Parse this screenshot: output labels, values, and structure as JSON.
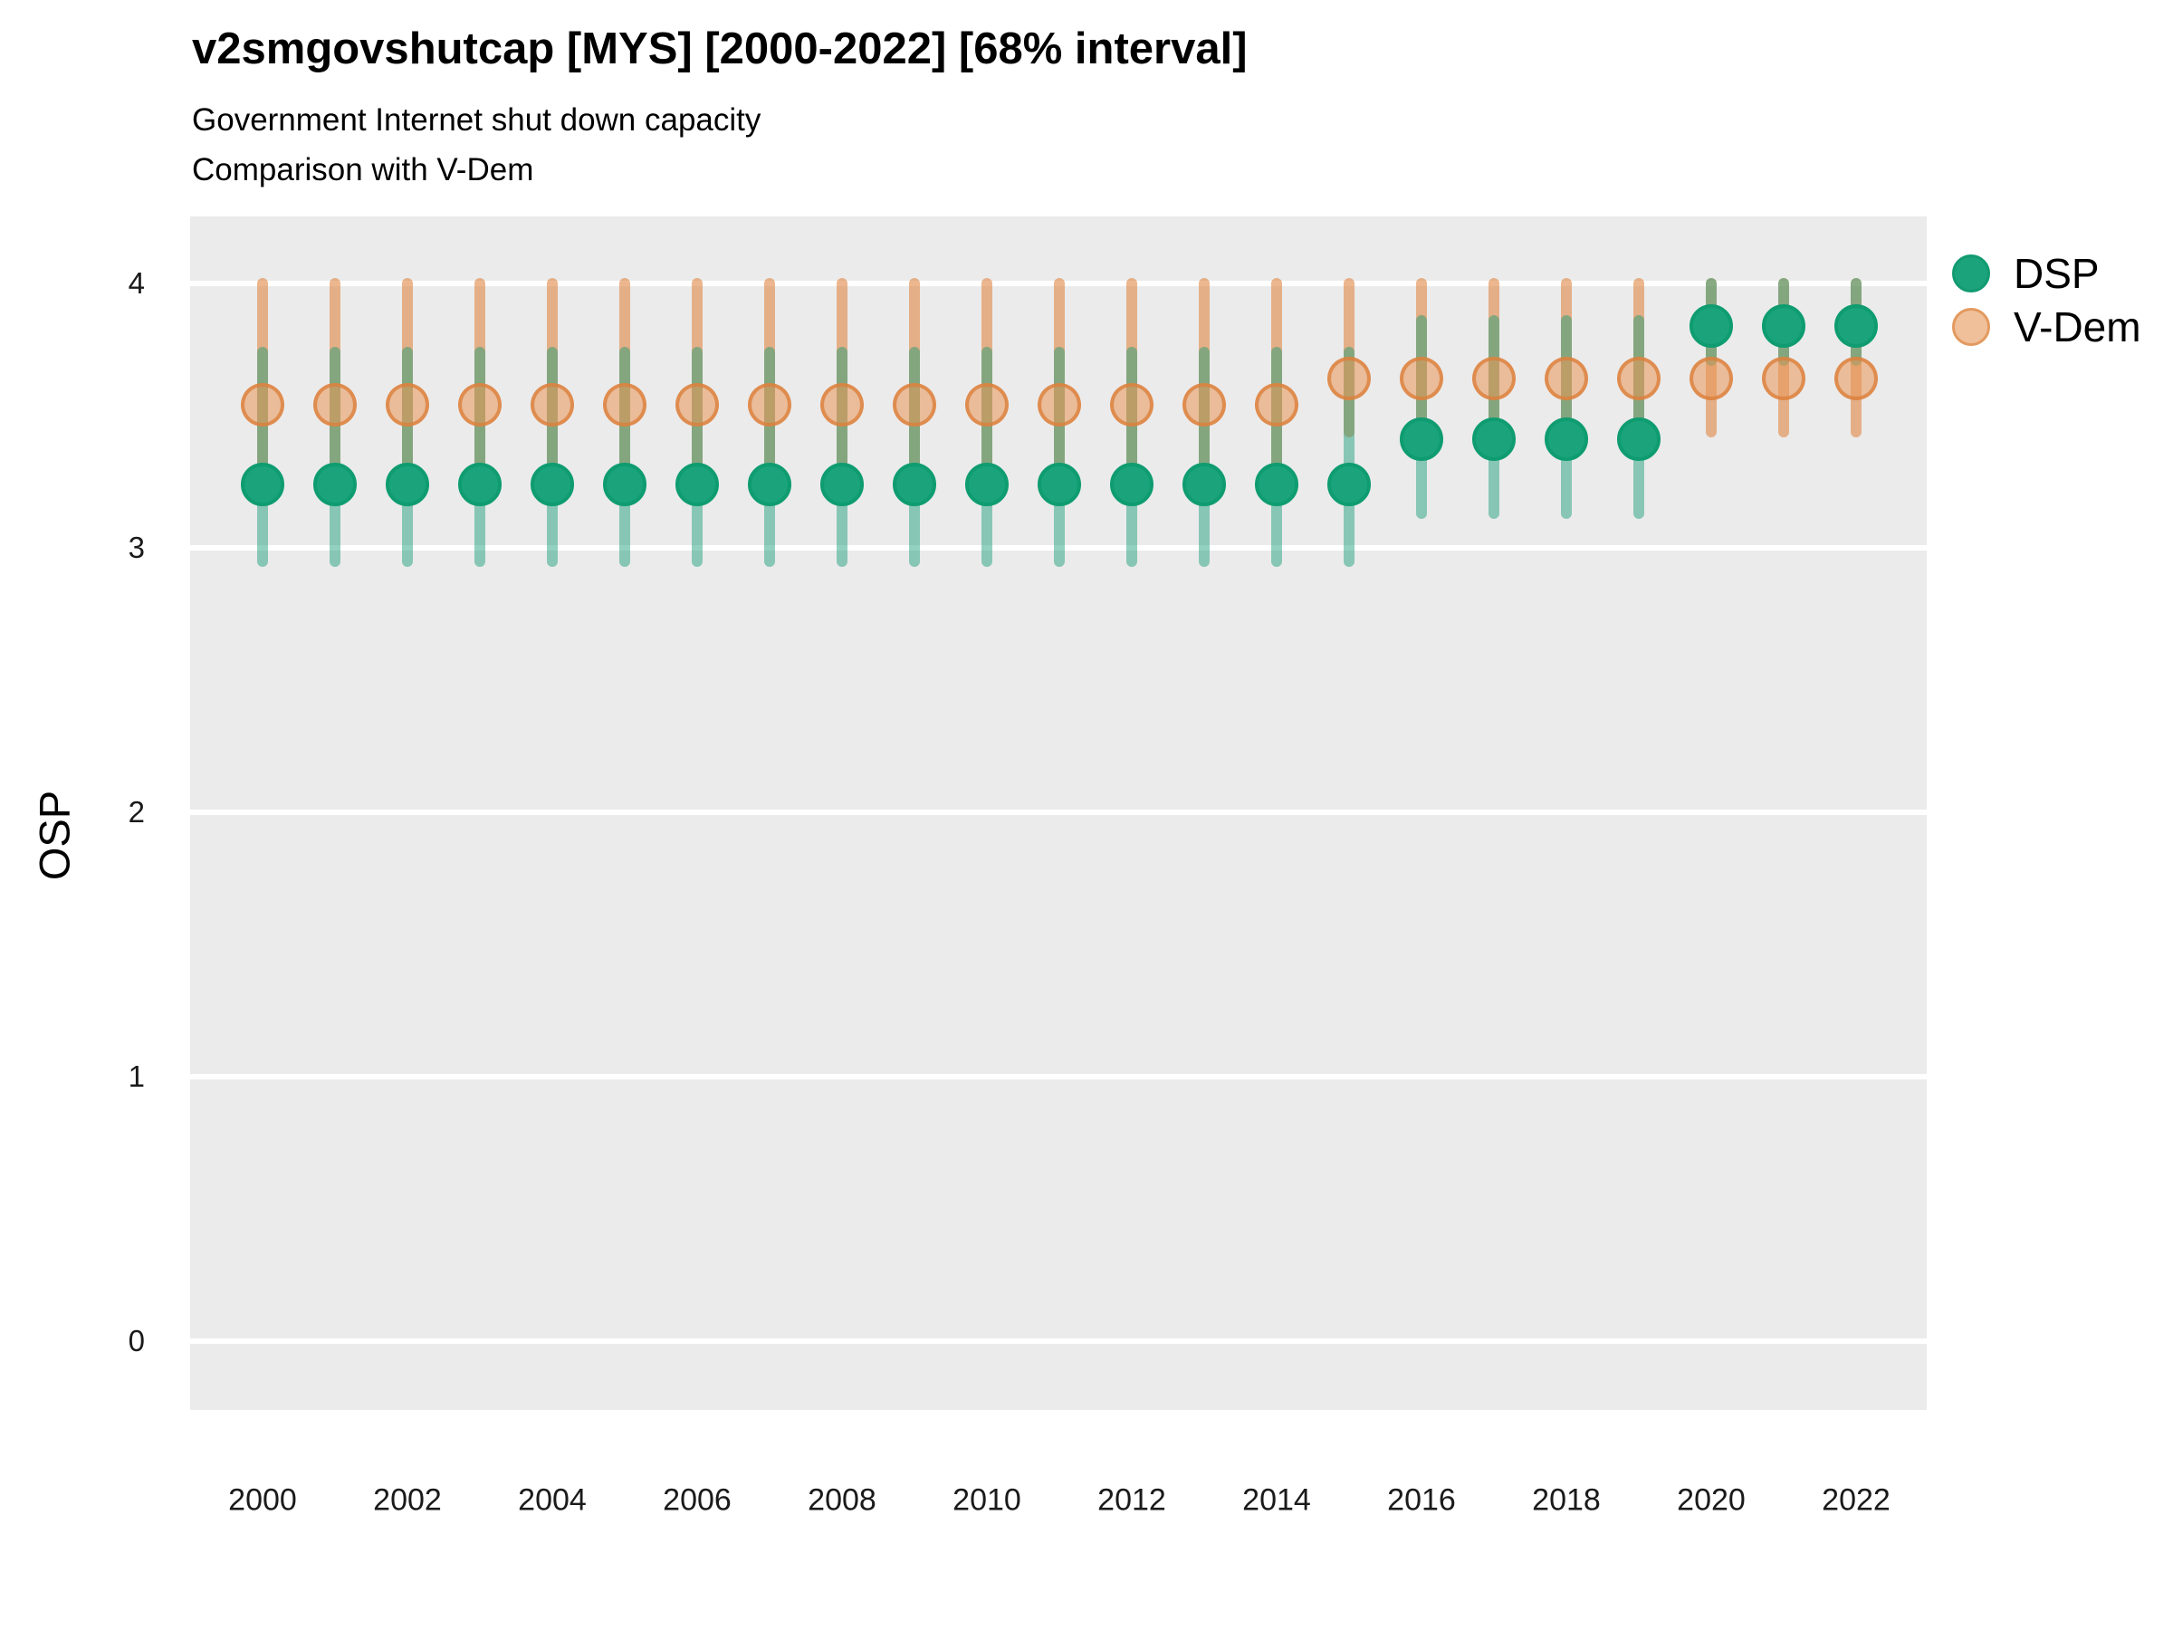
{
  "title": "v2smgovshutcap [MYS] [2000-2022] [68% interval]",
  "subtitle_line1": "Government Internet shut down capacity",
  "subtitle_line2": "Comparison with V-Dem",
  "y_axis_title": "OSP",
  "legend": {
    "items": [
      {
        "label": "DSP"
      },
      {
        "label": "V-Dem"
      }
    ]
  },
  "colors": {
    "panel_background": "#ebebeb",
    "gridline": "#ffffff",
    "dsp_point_fill": "#1ba47c",
    "dsp_point_border": "#0e9c70",
    "dsp_bar": "rgba(23,158,118,0.47)",
    "vdem_point_fill": "rgba(233,150,85,0.55)",
    "vdem_point_border": "rgba(219,128,60,0.8)",
    "vdem_bar": "rgba(224,138,74,0.62)",
    "text": "#000000"
  },
  "chart_data": {
    "type": "scatter",
    "subtype": "pointrange-comparison",
    "interval": "68%",
    "country": "MYS",
    "variable": "v2smgovshutcap",
    "x": [
      2000,
      2001,
      2002,
      2003,
      2004,
      2005,
      2006,
      2007,
      2008,
      2009,
      2010,
      2011,
      2012,
      2013,
      2014,
      2015,
      2016,
      2017,
      2018,
      2019,
      2020,
      2021,
      2022
    ],
    "x_tick_labels": [
      "2000",
      "2002",
      "2004",
      "2006",
      "2008",
      "2010",
      "2012",
      "2014",
      "2016",
      "2018",
      "2020",
      "2022"
    ],
    "x_tick_years": [
      2000,
      2002,
      2004,
      2006,
      2008,
      2010,
      2012,
      2014,
      2016,
      2018,
      2020,
      2022
    ],
    "y_ticks": [
      4,
      3,
      2,
      1,
      0
    ],
    "y_tick_labels": [
      "4",
      "3",
      "2",
      "1",
      "0"
    ],
    "ylim": [
      -0.26,
      4.25
    ],
    "xlabel": "",
    "ylabel": "OSP",
    "grid": "horizontal-major-only",
    "legend_position": "right",
    "series": [
      {
        "name": "DSP",
        "points": [
          3.24,
          3.24,
          3.24,
          3.24,
          3.24,
          3.24,
          3.24,
          3.24,
          3.24,
          3.24,
          3.24,
          3.24,
          3.24,
          3.24,
          3.24,
          3.24,
          3.41,
          3.41,
          3.41,
          3.41,
          3.84,
          3.84,
          3.84
        ],
        "lower": [
          2.95,
          2.95,
          2.95,
          2.95,
          2.95,
          2.95,
          2.95,
          2.95,
          2.95,
          2.95,
          2.95,
          2.95,
          2.95,
          2.95,
          2.95,
          2.95,
          3.13,
          3.13,
          3.13,
          3.13,
          3.71,
          3.71,
          3.71
        ],
        "upper": [
          3.74,
          3.74,
          3.74,
          3.74,
          3.74,
          3.74,
          3.74,
          3.74,
          3.74,
          3.74,
          3.74,
          3.74,
          3.74,
          3.74,
          3.74,
          3.74,
          3.86,
          3.86,
          3.86,
          3.86,
          4.0,
          4.0,
          4.0
        ]
      },
      {
        "name": "V-Dem",
        "points": [
          3.54,
          3.54,
          3.54,
          3.54,
          3.54,
          3.54,
          3.54,
          3.54,
          3.54,
          3.54,
          3.54,
          3.54,
          3.54,
          3.54,
          3.54,
          3.64,
          3.64,
          3.64,
          3.64,
          3.64,
          3.64,
          3.64,
          3.64
        ],
        "lower": [
          3.25,
          3.25,
          3.25,
          3.25,
          3.25,
          3.25,
          3.25,
          3.25,
          3.25,
          3.25,
          3.25,
          3.25,
          3.25,
          3.25,
          3.25,
          3.44,
          3.44,
          3.44,
          3.44,
          3.44,
          3.44,
          3.44,
          3.44
        ],
        "upper": [
          4.0,
          4.0,
          4.0,
          4.0,
          4.0,
          4.0,
          4.0,
          4.0,
          4.0,
          4.0,
          4.0,
          4.0,
          4.0,
          4.0,
          4.0,
          4.0,
          4.0,
          4.0,
          4.0,
          4.0,
          4.0,
          4.0,
          4.0
        ]
      }
    ]
  }
}
